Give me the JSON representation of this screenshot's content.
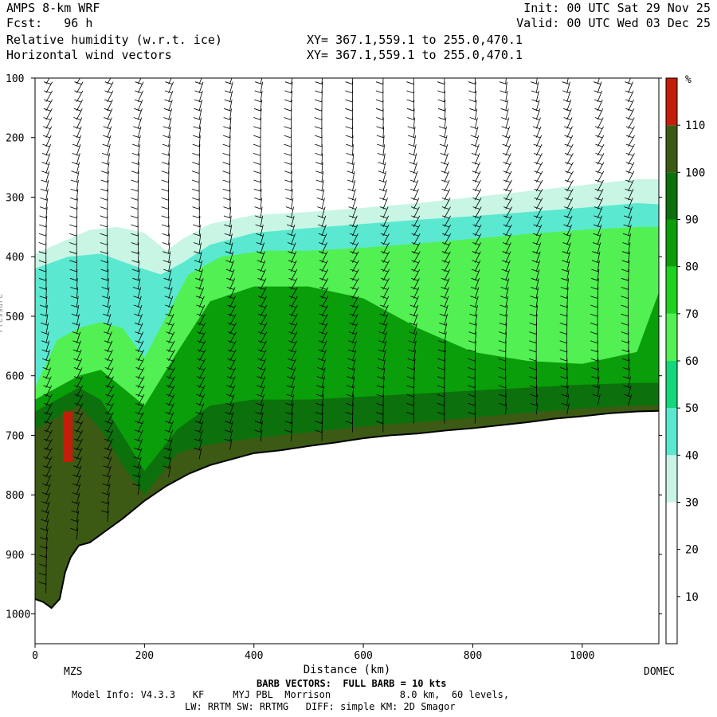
{
  "header": {
    "model": "AMPS 8-km WRF",
    "forecast": "Fcst:   96 h",
    "field": "Relative humidity (w.r.t. ice)",
    "vectors": "Horizontal wind vectors",
    "init": "Init: 00 UTC Sat 29 Nov 25",
    "valid": "Valid: 00 UTC Wed 03 Dec 25",
    "xy_line1": "XY= 367.1,559.1 to 255.0,470.1",
    "xy_line2": "XY= 367.1,559.1 to 255.0,470.1"
  },
  "footer": {
    "barb_note": "BARB VECTORS:  FULL BARB = 10 kts",
    "model_info": "Model Info: V4.3.3   KF     MYJ PBL  Morrison            8.0 km,  60 levels,",
    "physics": "LW: RRTM SW: RRTMG   DIFF: simple KM: 2D Smagor"
  },
  "chart_data": {
    "type": "heatmap",
    "title": "Relative humidity (w.r.t. ice)",
    "xlabel": "Distance (km)",
    "ylabel": "Pressure",
    "xlim": [
      0,
      1140
    ],
    "ylim": [
      1050,
      100
    ],
    "x_ticks": [
      0,
      200,
      400,
      600,
      800,
      1000
    ],
    "y_ticks": [
      100,
      200,
      300,
      400,
      500,
      600,
      700,
      800,
      900,
      1000
    ],
    "endpoint_labels": {
      "left": "MZS",
      "right": "DOMEC"
    },
    "colorbar": {
      "unit": "%",
      "levels": [
        10,
        20,
        30,
        40,
        50,
        60,
        70,
        80,
        90,
        100,
        110
      ],
      "colors": [
        "#ffffff",
        "#ffffff",
        "#ffffff",
        "#c8f5e4",
        "#5ae8d0",
        "#14d77c",
        "#52f052",
        "#1ed21e",
        "#0a9e0a",
        "#0c700c",
        "#3c5a14",
        "#c41e0a"
      ]
    },
    "terrain_pressure": [
      [
        0,
        975
      ],
      [
        15,
        980
      ],
      [
        30,
        990
      ],
      [
        45,
        975
      ],
      [
        55,
        930
      ],
      [
        65,
        905
      ],
      [
        80,
        885
      ],
      [
        100,
        880
      ],
      [
        130,
        860
      ],
      [
        160,
        840
      ],
      [
        200,
        810
      ],
      [
        240,
        785
      ],
      [
        280,
        765
      ],
      [
        320,
        750
      ],
      [
        360,
        740
      ],
      [
        400,
        730
      ],
      [
        450,
        725
      ],
      [
        500,
        718
      ],
      [
        550,
        712
      ],
      [
        600,
        705
      ],
      [
        650,
        700
      ],
      [
        700,
        697
      ],
      [
        750,
        692
      ],
      [
        800,
        688
      ],
      [
        850,
        683
      ],
      [
        900,
        678
      ],
      [
        950,
        672
      ],
      [
        1000,
        668
      ],
      [
        1050,
        663
      ],
      [
        1100,
        660
      ],
      [
        1140,
        659
      ]
    ],
    "rh_bands": [
      {
        "rh_percent": 35,
        "top_pressure": [
          [
            0,
            395
          ],
          [
            50,
            375
          ],
          [
            100,
            355
          ],
          [
            150,
            350
          ],
          [
            200,
            360
          ],
          [
            240,
            390
          ],
          [
            270,
            370
          ],
          [
            320,
            345
          ],
          [
            400,
            330
          ],
          [
            500,
            325
          ],
          [
            600,
            318
          ],
          [
            700,
            310
          ],
          [
            800,
            300
          ],
          [
            900,
            290
          ],
          [
            1000,
            280
          ],
          [
            1100,
            270
          ],
          [
            1140,
            270
          ]
        ]
      },
      {
        "rh_percent": 45,
        "top_pressure": [
          [
            0,
            420
          ],
          [
            60,
            400
          ],
          [
            120,
            395
          ],
          [
            180,
            415
          ],
          [
            230,
            430
          ],
          [
            270,
            410
          ],
          [
            320,
            380
          ],
          [
            400,
            360
          ],
          [
            500,
            352
          ],
          [
            600,
            345
          ],
          [
            700,
            338
          ],
          [
            800,
            332
          ],
          [
            900,
            325
          ],
          [
            1000,
            318
          ],
          [
            1100,
            310
          ],
          [
            1140,
            312
          ]
        ]
      },
      {
        "rh_percent": 65,
        "top_pressure": [
          [
            0,
            620
          ],
          [
            40,
            540
          ],
          [
            80,
            520
          ],
          [
            120,
            510
          ],
          [
            160,
            520
          ],
          [
            200,
            570
          ],
          [
            240,
            500
          ],
          [
            280,
            430
          ],
          [
            340,
            400
          ],
          [
            420,
            390
          ],
          [
            500,
            390
          ],
          [
            600,
            385
          ],
          [
            700,
            378
          ],
          [
            800,
            370
          ],
          [
            900,
            362
          ],
          [
            1000,
            355
          ],
          [
            1100,
            350
          ],
          [
            1140,
            350
          ]
        ]
      },
      {
        "rh_percent": 85,
        "top_pressure": [
          [
            0,
            640
          ],
          [
            40,
            620
          ],
          [
            80,
            600
          ],
          [
            120,
            590
          ],
          [
            160,
            620
          ],
          [
            200,
            650
          ],
          [
            260,
            560
          ],
          [
            320,
            475
          ],
          [
            400,
            450
          ],
          [
            500,
            450
          ],
          [
            600,
            470
          ],
          [
            700,
            520
          ],
          [
            800,
            560
          ],
          [
            900,
            575
          ],
          [
            1000,
            580
          ],
          [
            1100,
            560
          ],
          [
            1140,
            460
          ]
        ]
      },
      {
        "rh_percent": 95,
        "top_pressure": [
          [
            0,
            660
          ],
          [
            40,
            640
          ],
          [
            80,
            620
          ],
          [
            120,
            640
          ],
          [
            160,
            700
          ],
          [
            200,
            760
          ],
          [
            260,
            690
          ],
          [
            320,
            650
          ],
          [
            400,
            640
          ],
          [
            500,
            640
          ],
          [
            600,
            635
          ],
          [
            700,
            630
          ],
          [
            800,
            625
          ],
          [
            900,
            620
          ],
          [
            1000,
            615
          ],
          [
            1100,
            612
          ],
          [
            1140,
            612
          ]
        ]
      },
      {
        "rh_percent": 105,
        "top_pressure": [
          [
            0,
            690
          ],
          [
            40,
            670
          ],
          [
            80,
            650
          ],
          [
            120,
            690
          ],
          [
            160,
            750
          ],
          [
            200,
            800
          ],
          [
            260,
            730
          ],
          [
            320,
            715
          ],
          [
            400,
            705
          ],
          [
            500,
            695
          ],
          [
            600,
            685
          ],
          [
            700,
            678
          ],
          [
            800,
            670
          ],
          [
            900,
            662
          ],
          [
            1000,
            655
          ],
          [
            1100,
            650
          ],
          [
            1140,
            650
          ]
        ]
      }
    ],
    "rh_peak": {
      "x_km": 60,
      "p_top": 660,
      "p_bottom": 745,
      "rh_percent": 115
    }
  }
}
